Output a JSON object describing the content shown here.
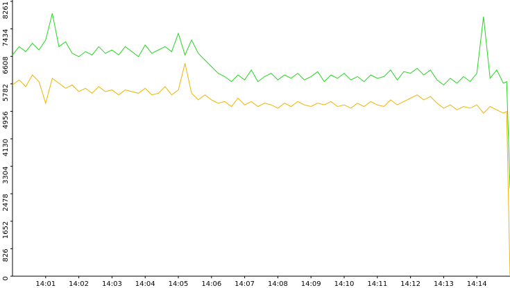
{
  "chart_data": {
    "type": "line",
    "x": [
      0,
      0.2,
      0.4,
      0.6,
      0.8,
      1.0,
      1.2,
      1.4,
      1.6,
      1.8,
      2.0,
      2.2,
      2.4,
      2.6,
      2.8,
      3.0,
      3.2,
      3.4,
      3.6,
      3.8,
      4.0,
      4.2,
      4.4,
      4.6,
      4.8,
      5.0,
      5.2,
      5.4,
      5.6,
      5.8,
      6.0,
      6.2,
      6.4,
      6.6,
      6.8,
      7.0,
      7.2,
      7.4,
      7.6,
      7.8,
      8.0,
      8.2,
      8.4,
      8.6,
      8.8,
      9.0,
      9.2,
      9.4,
      9.6,
      9.8,
      10.0,
      10.2,
      10.4,
      10.6,
      10.8,
      11.0,
      11.2,
      11.4,
      11.6,
      11.8,
      12.0,
      12.2,
      12.4,
      12.6,
      12.8,
      13.0,
      13.2,
      13.4,
      13.6,
      13.8,
      14.0,
      14.2,
      14.4,
      14.6,
      14.8,
      14.9,
      15.0
    ],
    "series": [
      {
        "color": "#22d61e",
        "values": [
          6650,
          6900,
          6750,
          7000,
          6800,
          7100,
          7900,
          6900,
          7050,
          6700,
          6600,
          6750,
          6650,
          6900,
          6700,
          6800,
          6650,
          6900,
          6750,
          6600,
          6950,
          6700,
          6800,
          6900,
          6750,
          7300,
          6650,
          7100,
          6700,
          6500,
          6300,
          6100,
          6000,
          5850,
          6050,
          5900,
          6200,
          5850,
          6000,
          6100,
          5900,
          6050,
          5950,
          6100,
          5900,
          6000,
          6150,
          5850,
          6050,
          5950,
          6100,
          5900,
          6000,
          5850,
          6050,
          5950,
          6000,
          6200,
          5900,
          6150,
          6100,
          6250,
          6050,
          6200,
          5900,
          5750,
          5950,
          5800,
          6000,
          5850,
          6100,
          7800,
          5950,
          6200,
          5800,
          5850,
          2650
        ]
      },
      {
        "color": "#f0b400",
        "values": [
          5750,
          5900,
          5700,
          6050,
          5850,
          5200,
          5950,
          5800,
          5650,
          5750,
          5550,
          5650,
          5500,
          5700,
          5550,
          5600,
          5450,
          5600,
          5550,
          5500,
          5650,
          5450,
          5500,
          5700,
          5450,
          5600,
          6400,
          5500,
          5300,
          5450,
          5300,
          5200,
          5250,
          5100,
          5350,
          5150,
          5250,
          5100,
          5200,
          5150,
          5050,
          5200,
          5100,
          5250,
          5150,
          5100,
          5200,
          5150,
          5250,
          5100,
          5150,
          5050,
          5200,
          5100,
          5250,
          5150,
          5100,
          5300,
          5150,
          5250,
          5350,
          5450,
          5300,
          5400,
          5200,
          5050,
          5150,
          5000,
          5100,
          5050,
          5150,
          4900,
          5100,
          5000,
          4900,
          4950,
          0
        ]
      }
    ],
    "xlim": [
      0,
      15
    ],
    "xticks": [
      {
        "value": 1,
        "label": "14:01"
      },
      {
        "value": 2,
        "label": "14:02"
      },
      {
        "value": 3,
        "label": "14:03"
      },
      {
        "value": 4,
        "label": "14:04"
      },
      {
        "value": 5,
        "label": "14:05"
      },
      {
        "value": 6,
        "label": "14:06"
      },
      {
        "value": 7,
        "label": "14:07"
      },
      {
        "value": 8,
        "label": "14:08"
      },
      {
        "value": 9,
        "label": "14:09"
      },
      {
        "value": 10,
        "label": "14:10"
      },
      {
        "value": 11,
        "label": "14:11"
      },
      {
        "value": 12,
        "label": "14:12"
      },
      {
        "value": 13,
        "label": "14:13"
      },
      {
        "value": 14,
        "label": "14:14"
      }
    ],
    "ylim": [
      0,
      8261
    ],
    "yticks": [
      0,
      826,
      1652,
      2478,
      3304,
      4130,
      4956,
      5782,
      6608,
      7434,
      8261
    ]
  }
}
